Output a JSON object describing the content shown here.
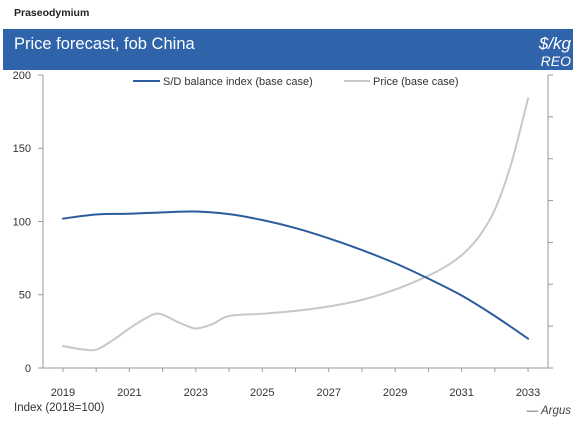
{
  "colors": {
    "header_bg": "#2f64aa",
    "axis": "#9a9a9a",
    "tick_text": "#333333"
  },
  "chart_data": {
    "type": "line",
    "supertitle": "Praseodymium",
    "title": "Price forecast, fob China",
    "ylabel": "Index (2018=100)",
    "y2label": "$/kg",
    "y2label_sub": "REO",
    "source": "— Argus",
    "xlim": [
      2018.4,
      2033.6
    ],
    "ylim": [
      0,
      200
    ],
    "x_ticks": [
      2019,
      2021,
      2023,
      2025,
      2027,
      2029,
      2031,
      2033
    ],
    "y_ticks": [
      0,
      50,
      100,
      150,
      200
    ],
    "grid": false,
    "legend_position": "top",
    "series": [
      {
        "name": "S/D balance index (base case)",
        "color": "#2b5c9c",
        "x": [
          2019,
          2020,
          2021,
          2022,
          2023,
          2024,
          2025,
          2026,
          2027,
          2028,
          2029,
          2030,
          2031,
          2032,
          2033
        ],
        "y": [
          102,
          104.8,
          105.3,
          106.2,
          106.8,
          105,
          101,
          95.5,
          88.5,
          80.5,
          71.5,
          61,
          49.5,
          35.5,
          20
        ]
      },
      {
        "name": "Price (base case)",
        "color": "#c8c8c8",
        "x": [
          2019,
          2019.5,
          2020,
          2020.5,
          2021,
          2021.5,
          2021.9,
          2022.5,
          2023,
          2023.5,
          2024,
          2025,
          2026,
          2027,
          2028,
          2029,
          2030,
          2030.5,
          2031,
          2031.5,
          2032,
          2032.5,
          2033
        ],
        "y": [
          15,
          13,
          12.5,
          19,
          27,
          34,
          37,
          31,
          27,
          30,
          35.5,
          37,
          39,
          42,
          46.5,
          53.5,
          63,
          69,
          77,
          89,
          108,
          140,
          184
        ]
      }
    ]
  }
}
